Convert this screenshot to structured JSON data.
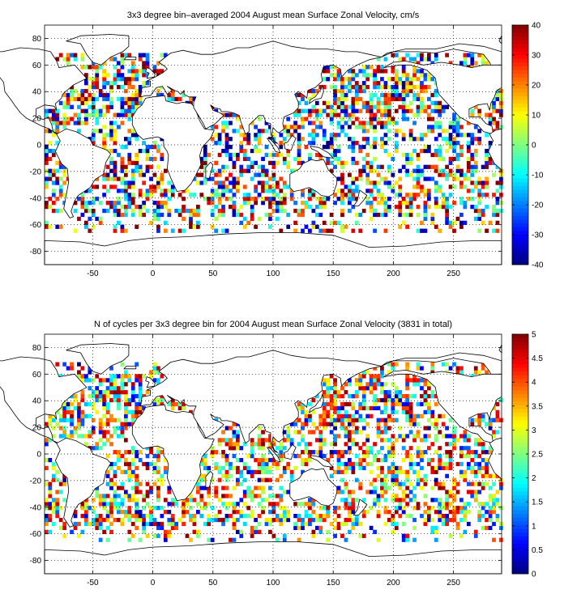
{
  "chart_data": [
    {
      "type": "heatmap",
      "title": "3x3 degree bin–averaged 2004 August mean Surface Zonal Velocity, cm/s",
      "xlabel": "",
      "ylabel": "",
      "xlim": [
        -90,
        290
      ],
      "ylim": [
        -90,
        90
      ],
      "xticks": [
        -50,
        0,
        50,
        100,
        150,
        200,
        250
      ],
      "yticks": [
        80,
        60,
        40,
        20,
        0,
        -20,
        -40,
        -60,
        -80
      ],
      "grid": true,
      "colormap": "jet",
      "colorbar": {
        "min": -40,
        "max": 40,
        "ticks": [
          40,
          30,
          20,
          10,
          0,
          -10,
          -20,
          -30,
          -40
        ]
      },
      "bin_size_deg": 3,
      "background": "coastline map, white land",
      "seed": 17
    },
    {
      "type": "heatmap",
      "title": "N of cycles per 3x3 degree bin for 2004 August mean Surface Zonal Velocity (3831 in total)",
      "xlabel": "",
      "ylabel": "",
      "xlim": [
        -90,
        290
      ],
      "ylim": [
        -90,
        90
      ],
      "xticks": [
        -50,
        0,
        50,
        100,
        150,
        200,
        250
      ],
      "yticks": [
        80,
        60,
        40,
        20,
        0,
        -20,
        -40,
        -60,
        -80
      ],
      "grid": true,
      "colormap": "jet",
      "colorbar": {
        "min": 0,
        "max": 5,
        "ticks": [
          5,
          4.5,
          4,
          3.5,
          3,
          2.5,
          2,
          1.5,
          1,
          0.5,
          0
        ]
      },
      "bin_size_deg": 3,
      "total_cycles": 3831,
      "background": "coastline map, white land",
      "seed": 29
    }
  ],
  "colors": {
    "frame": "#000000",
    "grid": "#000000",
    "land": "#ffffff"
  }
}
